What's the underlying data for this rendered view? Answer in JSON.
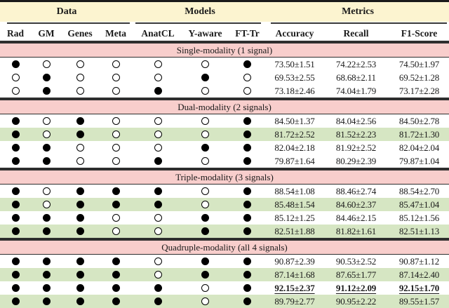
{
  "colors": {
    "group_band_yellow": "#fcf4d0",
    "section_band_pink": "#f8cecc",
    "highlight_row_green": "#d6e6c3",
    "rule_dark": "#1a1a1a",
    "text": "#1a1a1a"
  },
  "header": {
    "groups": [
      {
        "label": "Data"
      },
      {
        "label": "Models"
      },
      {
        "label": "Metrics"
      }
    ],
    "columns": [
      "Rad",
      "GM",
      "Genes",
      "Meta",
      "AnatCL",
      "Y-aware",
      "FT-Tr",
      "Accuracy",
      "Recall",
      "F1-Score"
    ]
  },
  "sections": [
    {
      "title": "Single-modality (1 signal)",
      "rows": [
        {
          "dots": [
            1,
            0,
            0,
            0,
            0,
            0,
            1
          ],
          "metrics": [
            "73.50±1.51",
            "74.22±2.53",
            "74.50±1.97"
          ],
          "highlight": false,
          "emphasis": false
        },
        {
          "dots": [
            0,
            1,
            0,
            0,
            0,
            1,
            0
          ],
          "metrics": [
            "69.53±2.55",
            "68.68±2.11",
            "69.52±1.28"
          ],
          "highlight": false,
          "emphasis": false
        },
        {
          "dots": [
            0,
            1,
            0,
            0,
            1,
            0,
            0
          ],
          "metrics": [
            "73.18±2.46",
            "74.04±1.79",
            "73.17±2.28"
          ],
          "highlight": false,
          "emphasis": false
        }
      ]
    },
    {
      "title": "Dual-modality (2 signals)",
      "rows": [
        {
          "dots": [
            1,
            0,
            1,
            0,
            0,
            0,
            1
          ],
          "metrics": [
            "84.50±1.37",
            "84.04±2.56",
            "84.50±2.78"
          ],
          "highlight": false,
          "emphasis": false
        },
        {
          "dots": [
            1,
            0,
            1,
            0,
            0,
            0,
            1
          ],
          "metrics": [
            "81.72±2.52",
            "81.52±2.23",
            "81.72±1.30"
          ],
          "highlight": true,
          "emphasis": false
        },
        {
          "dots": [
            1,
            1,
            0,
            0,
            0,
            1,
            1
          ],
          "metrics": [
            "82.04±2.18",
            "81.92±2.52",
            "82.04±2.04"
          ],
          "highlight": false,
          "emphasis": false
        },
        {
          "dots": [
            1,
            1,
            0,
            0,
            1,
            0,
            1
          ],
          "metrics": [
            "79.87±1.64",
            "80.29±2.39",
            "79.87±1.04"
          ],
          "highlight": false,
          "emphasis": false
        }
      ]
    },
    {
      "title": "Triple-modality (3 signals)",
      "rows": [
        {
          "dots": [
            1,
            0,
            1,
            1,
            1,
            0,
            1
          ],
          "metrics": [
            "88.54±1.08",
            "88.46±2.74",
            "88.54±2.70"
          ],
          "highlight": false,
          "emphasis": false
        },
        {
          "dots": [
            1,
            0,
            1,
            1,
            1,
            0,
            1
          ],
          "metrics": [
            "85.48±1.54",
            "84.60±2.37",
            "85.47±1.04"
          ],
          "highlight": true,
          "emphasis": false
        },
        {
          "dots": [
            1,
            1,
            1,
            0,
            0,
            1,
            1
          ],
          "metrics": [
            "85.12±1.25",
            "84.46±2.15",
            "85.12±1.56"
          ],
          "highlight": false,
          "emphasis": false
        },
        {
          "dots": [
            1,
            1,
            1,
            0,
            0,
            1,
            1
          ],
          "metrics": [
            "82.51±1.88",
            "81.82±1.61",
            "82.51±1.13"
          ],
          "highlight": true,
          "emphasis": false
        }
      ]
    },
    {
      "title": "Quadruple-modality (all 4 signals)",
      "rows": [
        {
          "dots": [
            1,
            1,
            1,
            1,
            0,
            1,
            1
          ],
          "metrics": [
            "90.87±2.39",
            "90.53±2.52",
            "90.87±1.12"
          ],
          "highlight": false,
          "emphasis": false
        },
        {
          "dots": [
            1,
            1,
            1,
            1,
            0,
            1,
            1
          ],
          "metrics": [
            "87.14±1.68",
            "87.65±1.77",
            "87.14±2.40"
          ],
          "highlight": true,
          "emphasis": false
        },
        {
          "dots": [
            1,
            1,
            1,
            1,
            1,
            0,
            1
          ],
          "metrics": [
            "92.15±2.37",
            "91.12±2.09",
            "92.15±1.70"
          ],
          "highlight": false,
          "emphasis": true
        },
        {
          "dots": [
            1,
            1,
            1,
            1,
            1,
            0,
            1
          ],
          "metrics": [
            "89.79±2.77",
            "90.95±2.22",
            "89.55±1.57"
          ],
          "highlight": true,
          "emphasis": false
        }
      ]
    }
  ]
}
